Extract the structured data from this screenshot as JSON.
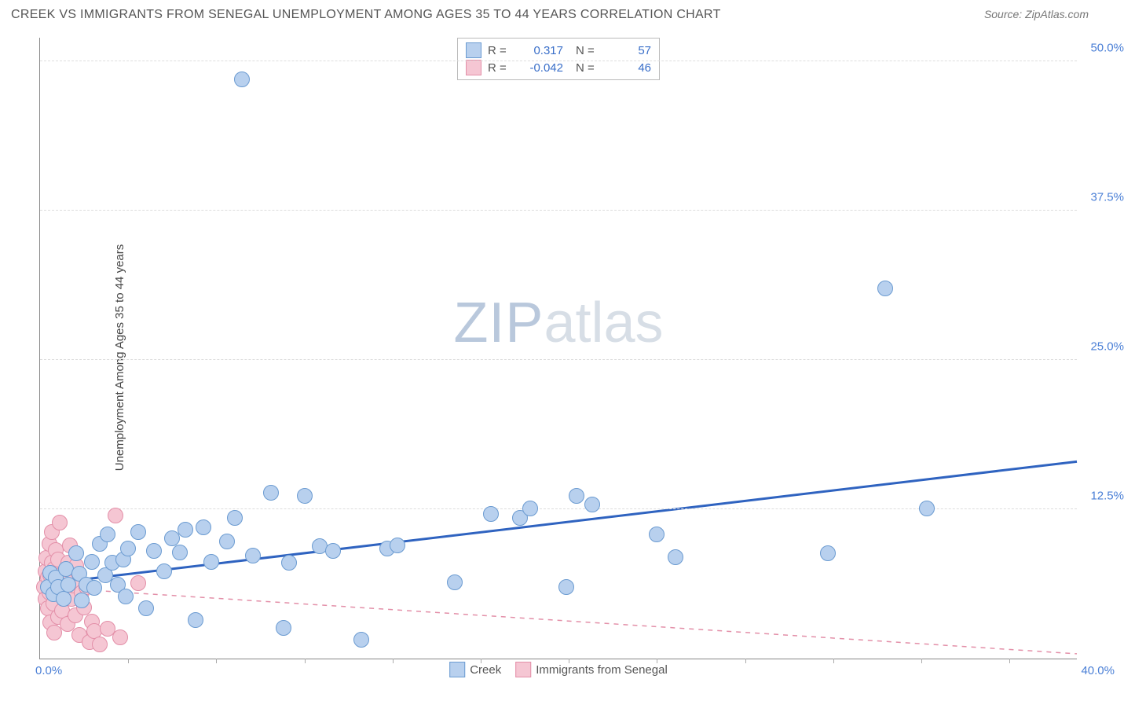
{
  "header": {
    "title": "CREEK VS IMMIGRANTS FROM SENEGAL UNEMPLOYMENT AMONG AGES 35 TO 44 YEARS CORRELATION CHART",
    "source_prefix": "Source: ",
    "source_name": "ZipAtlas.com"
  },
  "ylabel": "Unemployment Among Ages 35 to 44 years",
  "watermark": {
    "part1": "ZIP",
    "part2": "atlas"
  },
  "axes": {
    "xlim": [
      0,
      40
    ],
    "ylim": [
      0,
      52
    ],
    "xtick_min_label": "0.0%",
    "xtick_max_label": "40.0%",
    "xticks_minor": [
      3.4,
      6.8,
      10.2,
      13.6,
      17.0,
      20.4,
      23.8,
      27.2,
      30.6,
      34.0,
      37.4
    ],
    "yticks": [
      {
        "v": 12.5,
        "label": "12.5%"
      },
      {
        "v": 25.0,
        "label": "25.0%"
      },
      {
        "v": 37.5,
        "label": "37.5%"
      },
      {
        "v": 50.0,
        "label": "50.0%"
      }
    ],
    "axis_label_color": "#4a7fd6",
    "grid_color": "#dddddd"
  },
  "legend_stats": {
    "r_label": "R =",
    "n_label": "N =",
    "series": [
      {
        "key": "creek",
        "r": "0.317",
        "n": "57"
      },
      {
        "key": "senegal",
        "r": "-0.042",
        "n": "46"
      }
    ]
  },
  "legend_names": {
    "creek": "Creek",
    "senegal": "Immigrants from Senegal"
  },
  "series": {
    "creek": {
      "color_fill": "#b8d0ee",
      "color_stroke": "#6b9bd1",
      "marker_radius": 9,
      "trend": {
        "y_at_x0": 6.2,
        "y_at_xmax": 16.5,
        "color": "#2f63c0",
        "width": 3,
        "dashed": false
      },
      "points": [
        [
          0.3,
          6.0
        ],
        [
          0.4,
          7.2
        ],
        [
          0.5,
          5.4
        ],
        [
          0.6,
          6.8
        ],
        [
          0.7,
          6.0
        ],
        [
          0.9,
          5.0
        ],
        [
          1.0,
          7.5
        ],
        [
          1.1,
          6.2
        ],
        [
          1.4,
          8.8
        ],
        [
          1.5,
          7.1
        ],
        [
          1.6,
          4.9
        ],
        [
          1.8,
          6.2
        ],
        [
          2.0,
          8.1
        ],
        [
          2.1,
          5.9
        ],
        [
          2.3,
          9.6
        ],
        [
          2.5,
          7.0
        ],
        [
          2.6,
          10.4
        ],
        [
          2.8,
          8.0
        ],
        [
          3.0,
          6.2
        ],
        [
          3.2,
          8.3
        ],
        [
          3.3,
          5.2
        ],
        [
          3.4,
          9.2
        ],
        [
          3.8,
          10.6
        ],
        [
          4.1,
          4.2
        ],
        [
          4.4,
          9.0
        ],
        [
          4.8,
          7.3
        ],
        [
          5.1,
          10.1
        ],
        [
          5.4,
          8.9
        ],
        [
          5.6,
          10.8
        ],
        [
          6.0,
          3.2
        ],
        [
          6.3,
          11.0
        ],
        [
          6.6,
          8.1
        ],
        [
          7.2,
          9.8
        ],
        [
          7.5,
          11.8
        ],
        [
          7.8,
          48.5
        ],
        [
          8.2,
          8.6
        ],
        [
          8.9,
          13.9
        ],
        [
          9.4,
          2.6
        ],
        [
          9.6,
          8.0
        ],
        [
          10.2,
          13.6
        ],
        [
          10.8,
          9.4
        ],
        [
          11.3,
          9.0
        ],
        [
          12.4,
          1.6
        ],
        [
          13.4,
          9.2
        ],
        [
          13.8,
          9.5
        ],
        [
          16.0,
          6.4
        ],
        [
          17.4,
          12.1
        ],
        [
          18.5,
          11.8
        ],
        [
          18.9,
          12.6
        ],
        [
          20.3,
          6.0
        ],
        [
          20.7,
          13.6
        ],
        [
          21.3,
          12.9
        ],
        [
          23.8,
          10.4
        ],
        [
          24.5,
          8.5
        ],
        [
          30.4,
          8.8
        ],
        [
          32.6,
          31.0
        ],
        [
          34.2,
          12.6
        ]
      ]
    },
    "senegal": {
      "color_fill": "#f5c6d3",
      "color_stroke": "#e38fa8",
      "marker_radius": 9,
      "trend": {
        "y_at_x0": 6.0,
        "y_at_xmax": 0.4,
        "color": "#e38fa8",
        "width": 1.5,
        "dashed": true
      },
      "points": [
        [
          0.15,
          6.0
        ],
        [
          0.2,
          7.3
        ],
        [
          0.2,
          5.0
        ],
        [
          0.25,
          8.4
        ],
        [
          0.3,
          4.2
        ],
        [
          0.3,
          6.8
        ],
        [
          0.35,
          9.6
        ],
        [
          0.35,
          5.5
        ],
        [
          0.4,
          3.0
        ],
        [
          0.4,
          7.0
        ],
        [
          0.45,
          8.0
        ],
        [
          0.45,
          10.6
        ],
        [
          0.5,
          6.0
        ],
        [
          0.5,
          4.6
        ],
        [
          0.55,
          2.2
        ],
        [
          0.55,
          7.5
        ],
        [
          0.6,
          5.8
        ],
        [
          0.6,
          9.1
        ],
        [
          0.65,
          6.5
        ],
        [
          0.7,
          3.5
        ],
        [
          0.7,
          8.3
        ],
        [
          0.75,
          11.4
        ],
        [
          0.8,
          6.0
        ],
        [
          0.85,
          4.0
        ],
        [
          0.9,
          7.2
        ],
        [
          0.95,
          5.3
        ],
        [
          1.0,
          6.5
        ],
        [
          1.05,
          2.9
        ],
        [
          1.1,
          8.0
        ],
        [
          1.15,
          9.5
        ],
        [
          1.2,
          5.0
        ],
        [
          1.3,
          6.1
        ],
        [
          1.35,
          3.6
        ],
        [
          1.4,
          7.8
        ],
        [
          1.5,
          2.0
        ],
        [
          1.6,
          5.5
        ],
        [
          1.7,
          4.3
        ],
        [
          1.8,
          6.0
        ],
        [
          1.9,
          1.4
        ],
        [
          2.0,
          3.1
        ],
        [
          2.1,
          2.3
        ],
        [
          2.3,
          1.2
        ],
        [
          2.6,
          2.5
        ],
        [
          2.9,
          12.0
        ],
        [
          3.1,
          1.8
        ],
        [
          3.8,
          6.3
        ]
      ]
    }
  }
}
